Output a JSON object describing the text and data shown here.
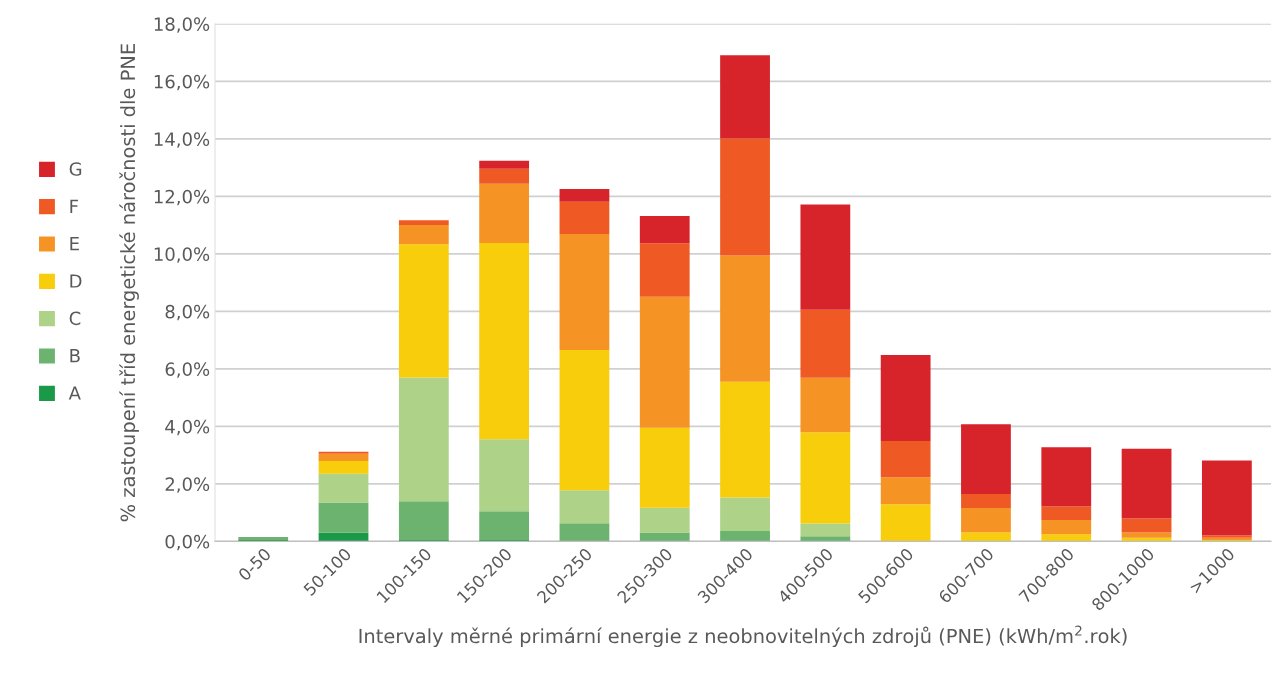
{
  "chart_data": {
    "type": "bar",
    "stacked": true,
    "xlabel": "Intervaly měrné primární energie z neobnovitelných zdrojů (PNE) (kWh/m$^{2}$.rok)",
    "ylabel": "% zastoupení tříd energetické náročnosti dle PNE",
    "categories": [
      "0-50",
      "50-100",
      "100-150",
      "150-200",
      "200-250",
      "250-300",
      "300-400",
      "400-500",
      "500-600",
      "600-700",
      "700-800",
      "800-1000",
      ">1000"
    ],
    "series": [
      {
        "name": "A",
        "color": "#1a9a48",
        "values": [
          0.05,
          0.3,
          0.05,
          0.05,
          0,
          0,
          0,
          0,
          0,
          0,
          0,
          0,
          0
        ]
      },
      {
        "name": "B",
        "color": "#6bb36f",
        "values": [
          0.1,
          1.05,
          1.35,
          1.0,
          0.63,
          0.31,
          0.36,
          0.18,
          0,
          0,
          0,
          0,
          0
        ]
      },
      {
        "name": "C",
        "color": "#aed288",
        "values": [
          0,
          1.0,
          4.3,
          2.5,
          1.15,
          0.86,
          1.17,
          0.44,
          0,
          0,
          0,
          0,
          0
        ]
      },
      {
        "name": "D",
        "color": "#f8cd0c",
        "values": [
          0,
          0.45,
          4.63,
          6.83,
          4.88,
          2.78,
          4.02,
          3.18,
          1.29,
          0.31,
          0.25,
          0.13,
          0.05
        ]
      },
      {
        "name": "E",
        "color": "#f59325",
        "values": [
          0,
          0.25,
          0.67,
          2.06,
          4.03,
          4.56,
          4.39,
          1.89,
          0.94,
          0.85,
          0.49,
          0.18,
          0.08
        ]
      },
      {
        "name": "F",
        "color": "#ef5a24",
        "values": [
          0,
          0.07,
          0.17,
          0.52,
          1.12,
          1.86,
          4.07,
          2.37,
          1.26,
          0.49,
          0.47,
          0.49,
          0.08
        ]
      },
      {
        "name": "G",
        "color": "#d7232a",
        "values": [
          0,
          0,
          0,
          0.28,
          0.45,
          0.95,
          2.9,
          3.66,
          2.99,
          2.42,
          2.06,
          2.42,
          2.6
        ]
      }
    ],
    "ylim": [
      0,
      18
    ],
    "yticks": [
      {
        "value": 0,
        "label": "0,0%"
      },
      {
        "value": 2,
        "label": "2,0%"
      },
      {
        "value": 4,
        "label": "4,0%"
      },
      {
        "value": 6,
        "label": "6,0%"
      },
      {
        "value": 8,
        "label": "8,0%"
      },
      {
        "value": 10,
        "label": "10,0%"
      },
      {
        "value": 12,
        "label": "12,0%"
      },
      {
        "value": 14,
        "label": "14,0%"
      },
      {
        "value": 16,
        "label": "16,0%"
      },
      {
        "value": 18,
        "label": "18,0%"
      }
    ],
    "grid": "y",
    "legend": "left"
  }
}
